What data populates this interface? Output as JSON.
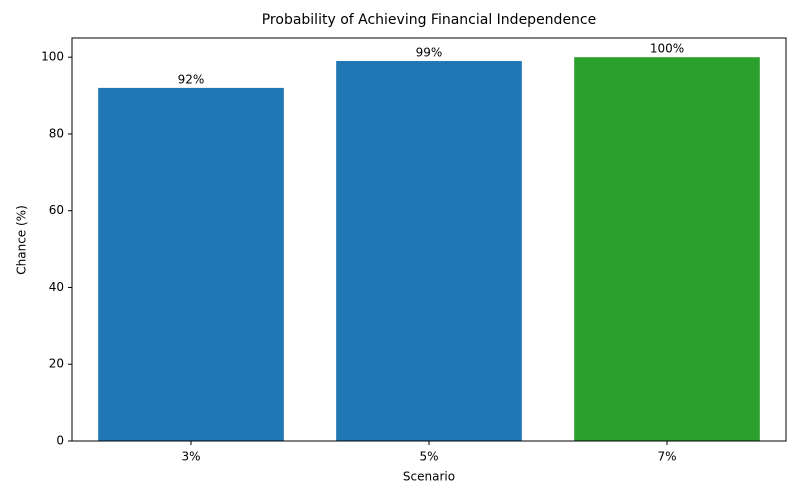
{
  "chart_data": {
    "type": "bar",
    "title": "Probability of Achieving Financial Independence",
    "x_label": "Scenario",
    "y_label": "Chance (%)",
    "categories": [
      "3%",
      "5%",
      "7%"
    ],
    "values": [
      92,
      99,
      100
    ],
    "value_labels": [
      "92%",
      "99%",
      "100%"
    ],
    "colors": [
      "#1f77b4",
      "#1f77b4",
      "#2ca02c"
    ],
    "ylim": [
      0,
      105
    ],
    "yticks": [
      0,
      20,
      40,
      60,
      80,
      100
    ],
    "grid": false
  }
}
